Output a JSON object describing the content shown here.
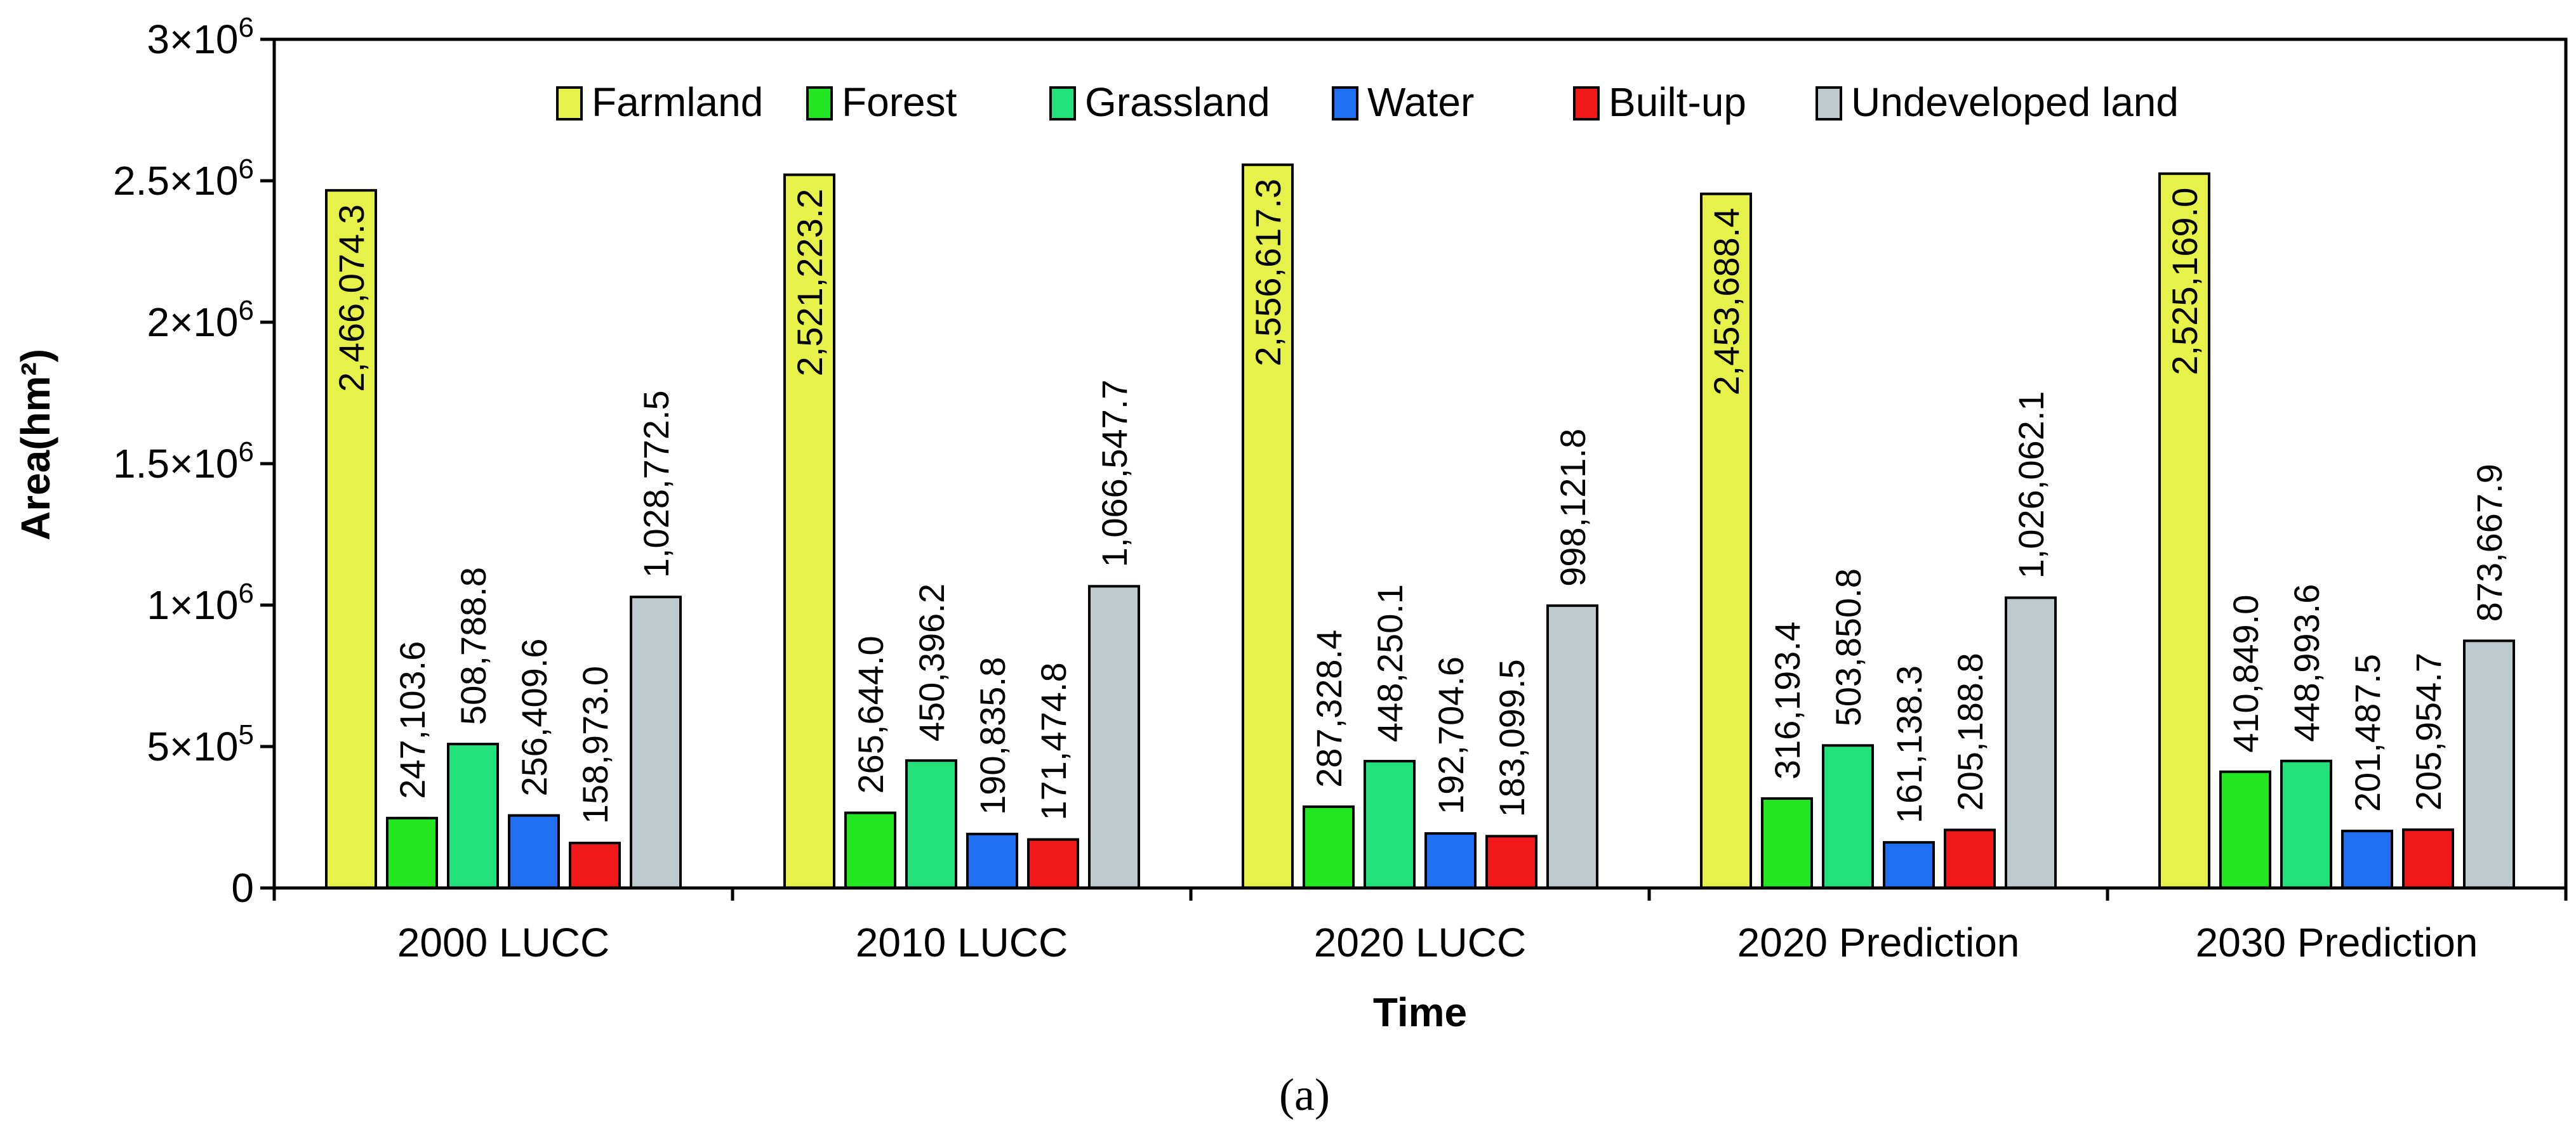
{
  "chart_data": {
    "type": "bar",
    "categories": [
      "2000 LUCC",
      "2010 LUCC",
      "2020 LUCC",
      "2020 Prediction",
      "2030 Prediction"
    ],
    "series": [
      {
        "name": "Farmland",
        "color": "#E6F24A",
        "values": [
          2466074.3,
          2521223.2,
          2556617.3,
          2453688.4,
          2525169.0
        ],
        "labels": [
          "2,466,074.3",
          "2,521,223.2",
          "2,556,617.3",
          "2,453,688.4",
          "2,525,169.0"
        ]
      },
      {
        "name": "Forest",
        "color": "#22E622",
        "values": [
          247103.6,
          265644.0,
          287328.4,
          316193.4,
          410849.0
        ],
        "labels": [
          "247,103.6",
          "265,644.0",
          "287,328.4",
          "316,193.4",
          "410,849.0"
        ]
      },
      {
        "name": "Grassland",
        "color": "#22E07A",
        "values": [
          508788.8,
          450396.2,
          448250.1,
          503850.8,
          448993.6
        ],
        "labels": [
          "508,788.8",
          "450,396.2",
          "448,250.1",
          "503,850.8",
          "448,993.6"
        ]
      },
      {
        "name": "Water",
        "color": "#1F6FF0",
        "values": [
          256409.6,
          190835.8,
          192704.6,
          161138.3,
          201487.5
        ],
        "labels": [
          "256,409.6",
          "190,835.8",
          "192,704.6",
          "161,138.3",
          "201,487.5"
        ]
      },
      {
        "name": "Built-up",
        "color": "#F01818",
        "values": [
          158973.0,
          171474.8,
          183099.5,
          205188.8,
          205954.7
        ],
        "labels": [
          "158,973.0",
          "171,474.8",
          "183,099.5",
          "205,188.8",
          "205,954.7"
        ]
      },
      {
        "name": "Undeveloped land",
        "color": "#BECBCE",
        "values": [
          1028772.5,
          1066547.7,
          998121.8,
          1026062.1,
          873667.9
        ],
        "labels": [
          "1,028,772.5",
          "1,066,547.7",
          "998,121.8",
          "1,026,062.1",
          "873,667.9"
        ]
      }
    ],
    "xlabel": "Time",
    "ylabel": "Area(hm²)",
    "ylim": [
      0,
      3000000
    ],
    "yticks": [
      {
        "value": 0,
        "base": "0",
        "exp": ""
      },
      {
        "value": 500000,
        "base": "5×10",
        "exp": "5"
      },
      {
        "value": 1000000,
        "base": "1×10",
        "exp": "6"
      },
      {
        "value": 1500000,
        "base": "1.5×10",
        "exp": "6"
      },
      {
        "value": 2000000,
        "base": "2×10",
        "exp": "6"
      },
      {
        "value": 2500000,
        "base": "2.5×10",
        "exp": "6"
      },
      {
        "value": 3000000,
        "base": "3×10",
        "exp": "6"
      }
    ],
    "legend_position": "top",
    "grid": false
  },
  "caption": "(a)"
}
